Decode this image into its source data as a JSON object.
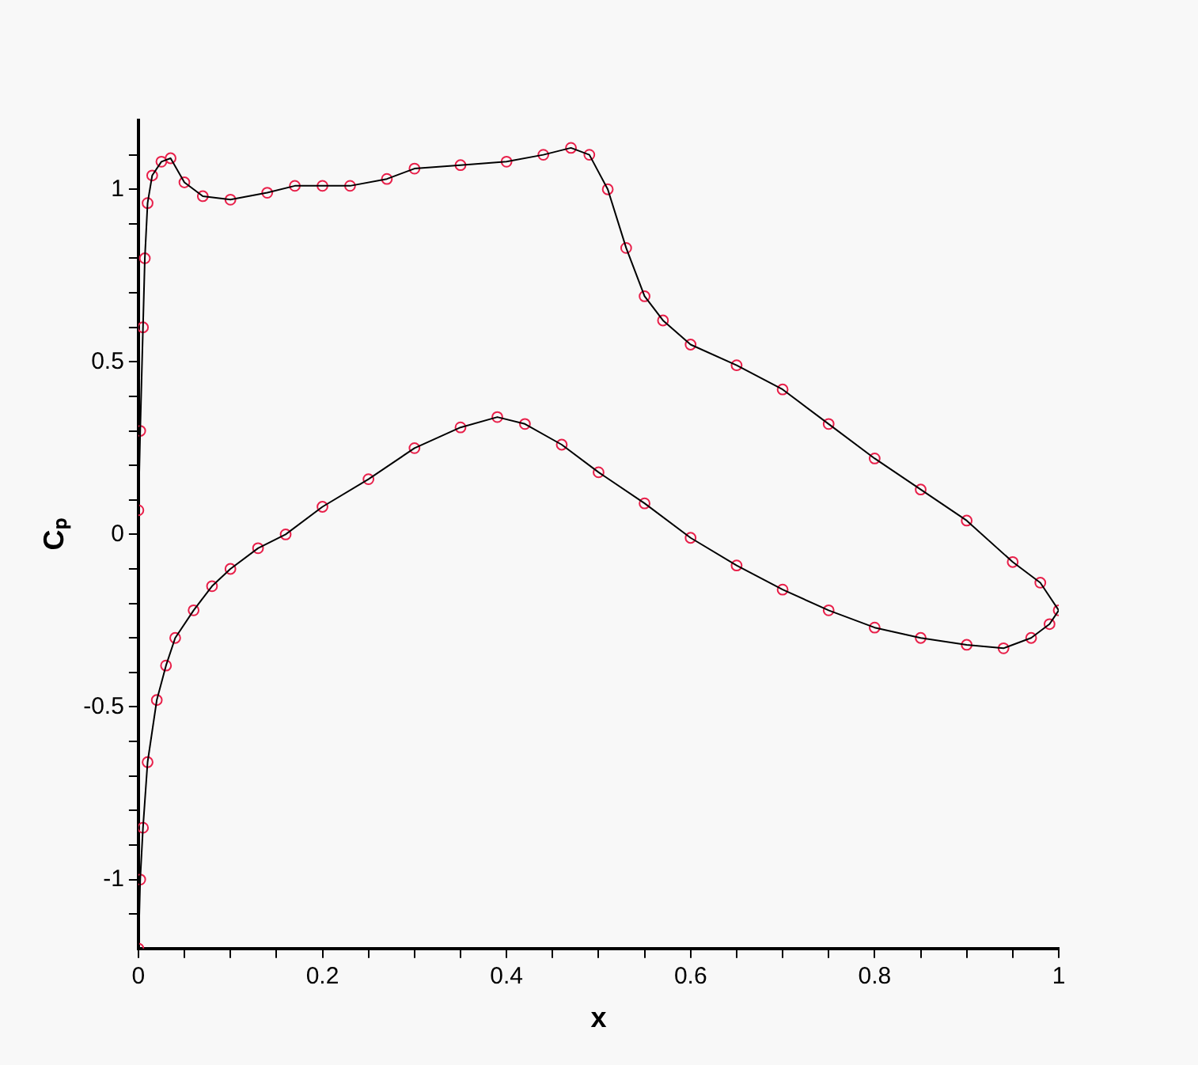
{
  "chart_data": {
    "type": "line",
    "xlabel": "x",
    "ylabel": "Cₚ",
    "series": [
      {
        "type": "line",
        "color": "#000000",
        "marker": "none",
        "x": [
          0,
          0.002,
          0.005,
          0.007,
          0.01,
          0.015,
          0.025,
          0.035,
          0.05,
          0.07,
          0.1,
          0.14,
          0.17,
          0.2,
          0.23,
          0.27,
          0.3,
          0.35,
          0.4,
          0.44,
          0.47,
          0.49,
          0.51,
          0.53,
          0.55,
          0.57,
          0.6,
          0.65,
          0.7,
          0.75,
          0.8,
          0.85,
          0.9,
          0.95,
          0.98,
          1
        ],
        "values": [
          0.07,
          0.3,
          0.6,
          0.8,
          0.96,
          1.04,
          1.08,
          1.09,
          1.02,
          0.98,
          0.97,
          0.99,
          1.01,
          1.01,
          1.01,
          1.03,
          1.06,
          1.07,
          1.08,
          1.1,
          1.12,
          1.1,
          1.0,
          0.83,
          0.69,
          0.62,
          0.55,
          0.49,
          0.42,
          0.32,
          0.22,
          0.13,
          0.04,
          -0.08,
          -0.14,
          -0.22
        ]
      },
      {
        "type": "line",
        "color": "#000000",
        "marker": "none",
        "x": [
          0,
          0.002,
          0.005,
          0.01,
          0.02,
          0.03,
          0.04,
          0.06,
          0.08,
          0.1,
          0.13,
          0.16,
          0.2,
          0.25,
          0.3,
          0.35,
          0.39,
          0.42,
          0.46,
          0.5,
          0.55,
          0.6,
          0.65,
          0.7,
          0.75,
          0.8,
          0.85,
          0.9,
          0.94,
          0.97,
          0.99,
          1
        ],
        "values": [
          -1.2,
          -1.0,
          -0.85,
          -0.66,
          -0.48,
          -0.38,
          -0.3,
          -0.22,
          -0.15,
          -0.1,
          -0.04,
          0.0,
          0.08,
          0.16,
          0.25,
          0.31,
          0.34,
          0.32,
          0.26,
          0.18,
          0.09,
          -0.01,
          -0.09,
          -0.16,
          -0.22,
          -0.27,
          -0.3,
          -0.32,
          -0.33,
          -0.3,
          -0.26,
          -0.22
        ]
      },
      {
        "type": "scatter",
        "color": "#e8204a",
        "marker": "circle",
        "x": [
          0,
          0.002,
          0.005,
          0.007,
          0.01,
          0.015,
          0.025,
          0.035,
          0.05,
          0.07,
          0.1,
          0.14,
          0.17,
          0.2,
          0.23,
          0.27,
          0.3,
          0.35,
          0.4,
          0.44,
          0.47,
          0.49,
          0.51,
          0.53,
          0.55,
          0.57,
          0.6,
          0.65,
          0.7,
          0.75,
          0.8,
          0.85,
          0.9,
          0.95,
          0.98,
          1
        ],
        "values": [
          0.07,
          0.3,
          0.6,
          0.8,
          0.96,
          1.04,
          1.08,
          1.09,
          1.02,
          0.98,
          0.97,
          0.99,
          1.01,
          1.01,
          1.01,
          1.03,
          1.06,
          1.07,
          1.08,
          1.1,
          1.12,
          1.1,
          1.0,
          0.83,
          0.69,
          0.62,
          0.55,
          0.49,
          0.42,
          0.32,
          0.22,
          0.13,
          0.04,
          -0.08,
          -0.14,
          -0.22
        ]
      },
      {
        "type": "scatter",
        "color": "#e8204a",
        "marker": "circle",
        "x": [
          0,
          0.002,
          0.005,
          0.01,
          0.02,
          0.03,
          0.04,
          0.06,
          0.08,
          0.1,
          0.13,
          0.16,
          0.2,
          0.25,
          0.3,
          0.35,
          0.39,
          0.42,
          0.46,
          0.5,
          0.55,
          0.6,
          0.65,
          0.7,
          0.75,
          0.8,
          0.85,
          0.9,
          0.94,
          0.97,
          0.99
        ],
        "values": [
          -1.2,
          -1.0,
          -0.85,
          -0.66,
          -0.48,
          -0.38,
          -0.3,
          -0.22,
          -0.15,
          -0.1,
          -0.04,
          0.0,
          0.08,
          0.16,
          0.25,
          0.31,
          0.34,
          0.32,
          0.26,
          0.18,
          0.09,
          -0.01,
          -0.09,
          -0.16,
          -0.22,
          -0.27,
          -0.3,
          -0.32,
          -0.33,
          -0.3,
          -0.26
        ]
      }
    ],
    "xlim": [
      0,
      1
    ],
    "xticks": [
      0,
      {
        "value": 0.05,
        "label": null
      },
      {
        "value": 0.1,
        "label": null
      },
      {
        "value": 0.15,
        "label": null
      },
      0.2,
      {
        "value": 0.25,
        "label": null
      },
      {
        "value": 0.3,
        "label": null
      },
      {
        "value": 0.35,
        "label": null
      },
      0.4,
      {
        "value": 0.45,
        "label": null
      },
      {
        "value": 0.5,
        "label": null
      },
      {
        "value": 0.55,
        "label": null
      },
      0.6,
      {
        "value": 0.65,
        "label": null
      },
      {
        "value": 0.7,
        "label": null
      },
      {
        "value": 0.75,
        "label": null
      },
      0.8,
      {
        "value": 0.85,
        "label": null
      },
      {
        "value": 0.9,
        "label": null
      },
      {
        "value": 0.95,
        "label": null
      },
      1
    ],
    "ylim": [
      -1.2,
      1.2
    ],
    "yticks": [
      {
        "value": -1.1,
        "label": null
      },
      -1,
      {
        "value": -0.9,
        "label": null
      },
      {
        "value": -0.8,
        "label": null
      },
      {
        "value": -0.7,
        "label": null
      },
      {
        "value": -0.6,
        "label": null
      },
      -0.5,
      {
        "value": -0.4,
        "label": null
      },
      {
        "value": -0.3,
        "label": null
      },
      {
        "value": -0.2,
        "label": null
      },
      {
        "value": -0.1,
        "label": null
      },
      0,
      {
        "value": 0.1,
        "label": null
      },
      {
        "value": 0.2,
        "label": null
      },
      {
        "value": 0.3,
        "label": null
      },
      {
        "value": 0.4,
        "label": null
      },
      0.5,
      {
        "value": 0.6,
        "label": null
      },
      {
        "value": 0.7,
        "label": null
      },
      {
        "value": 0.8,
        "label": null
      },
      {
        "value": 0.9,
        "label": null
      },
      1,
      {
        "value": 1.1,
        "label": null
      }
    ],
    "grid": false,
    "legend": false
  }
}
